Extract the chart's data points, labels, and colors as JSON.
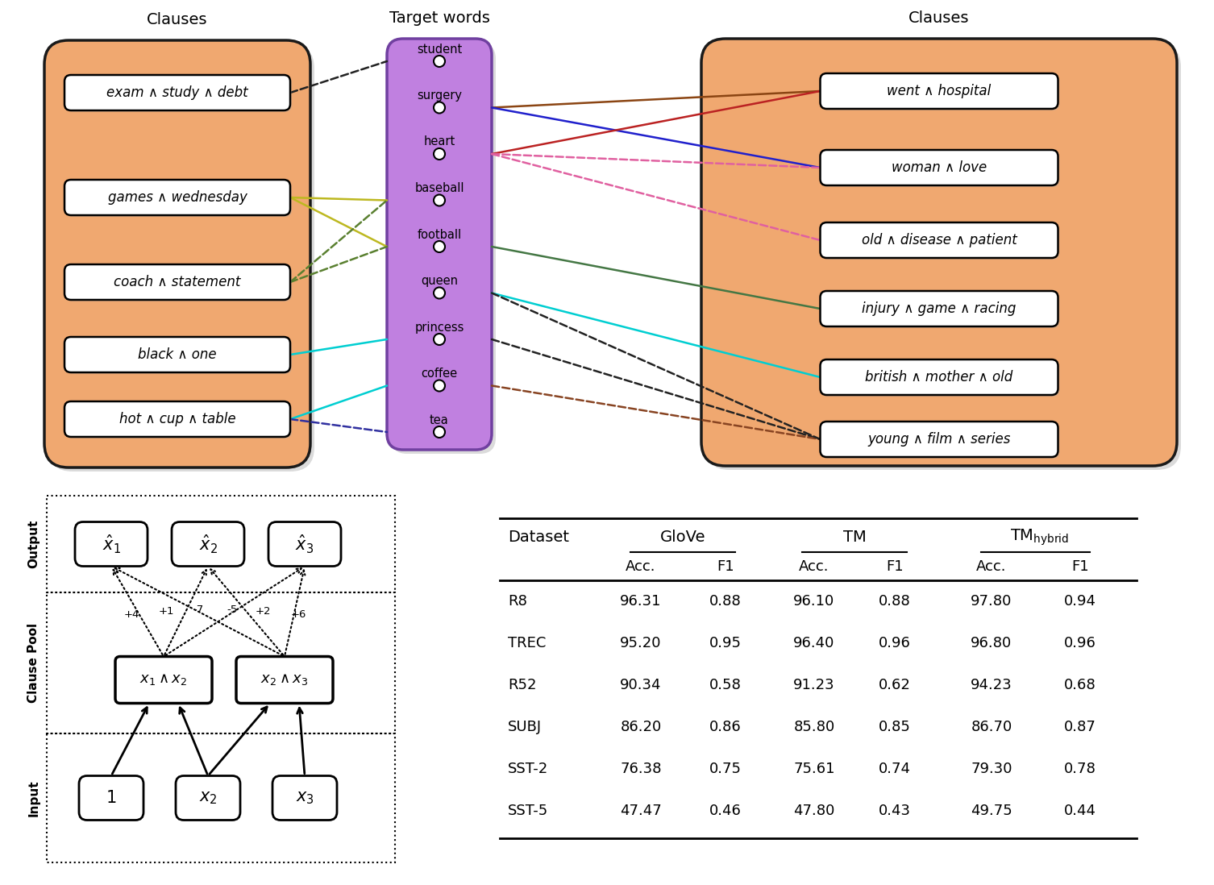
{
  "left_clauses": [
    "exam ∧ study ∧ debt",
    "games ∧ wednesday",
    "coach ∧ statement",
    "black ∧ one",
    "hot ∧ cup ∧ table"
  ],
  "target_words": [
    "student",
    "surgery",
    "heart",
    "baseball",
    "football",
    "queen",
    "princess",
    "coffee",
    "tea"
  ],
  "right_clauses": [
    "went ∧ hospital",
    "woman ∧ love",
    "old ∧ disease ∧ patient",
    "injury ∧ game ∧ racing",
    "british ∧ mother ∧ old",
    "young ∧ film ∧ series"
  ],
  "orange_color": "#F0A870",
  "orange_edge": "#1a1a1a",
  "purple_color": "#C080E0",
  "purple_edge": "#7040A0",
  "white_box_color": "#FFFFFF",
  "table_rows": [
    [
      "R8",
      "96.31",
      "0.88",
      "96.10",
      "0.88",
      "97.80",
      "0.94"
    ],
    [
      "TREC",
      "95.20",
      "0.95",
      "96.40",
      "0.96",
      "96.80",
      "0.96"
    ],
    [
      "R52",
      "90.34",
      "0.58",
      "91.23",
      "0.62",
      "94.23",
      "0.68"
    ],
    [
      "SUBJ",
      "86.20",
      "0.86",
      "85.80",
      "0.85",
      "86.70",
      "0.87"
    ],
    [
      "SST-2",
      "76.38",
      "0.75",
      "75.61",
      "0.74",
      "79.30",
      "0.78"
    ],
    [
      "SST-5",
      "47.47",
      "0.46",
      "47.80",
      "0.43",
      "49.75",
      "0.44"
    ]
  ],
  "left_connections": [
    [
      0,
      0,
      "#222222",
      true
    ],
    [
      1,
      3,
      "#BDB820",
      false
    ],
    [
      1,
      4,
      "#BDB820",
      false
    ],
    [
      2,
      3,
      "#5A8030",
      true
    ],
    [
      2,
      4,
      "#5A8030",
      true
    ],
    [
      3,
      6,
      "#00CED1",
      false
    ],
    [
      4,
      7,
      "#00CED1",
      false
    ],
    [
      4,
      8,
      "#3030A0",
      true
    ]
  ],
  "right_connections": [
    [
      1,
      0,
      "#8B4513",
      false
    ],
    [
      1,
      1,
      "#2020CC",
      false
    ],
    [
      2,
      0,
      "#BB2222",
      false
    ],
    [
      2,
      1,
      "#E060A0",
      true
    ],
    [
      2,
      2,
      "#E060A0",
      true
    ],
    [
      4,
      3,
      "#447744",
      false
    ],
    [
      5,
      4,
      "#00CED1",
      false
    ],
    [
      6,
      5,
      "#222222",
      true
    ],
    [
      7,
      5,
      "#884422",
      true
    ],
    [
      5,
      5,
      "#222222",
      true
    ]
  ]
}
